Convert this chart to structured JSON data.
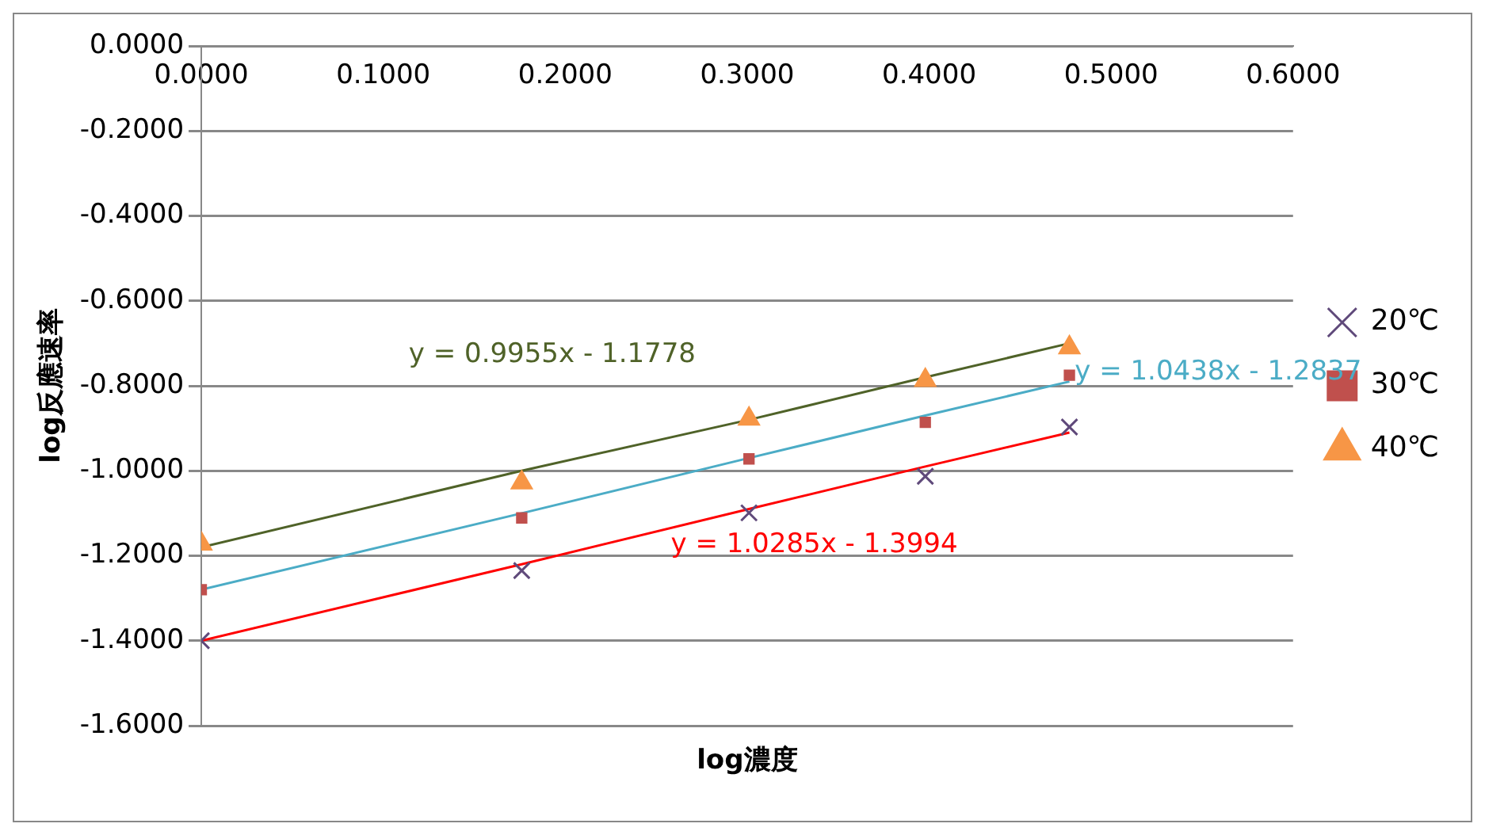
{
  "chart_data": {
    "type": "scatter",
    "xlabel": "log濃度",
    "ylabel": "log反應速率",
    "xlim": [
      0,
      0.6
    ],
    "ylim": [
      -1.6,
      0
    ],
    "xticks": [
      {
        "value": 0,
        "label": "0.0000"
      },
      {
        "value": 0.1,
        "label": "0.1000"
      },
      {
        "value": 0.2,
        "label": "0.2000"
      },
      {
        "value": 0.3,
        "label": "0.3000"
      },
      {
        "value": 0.4,
        "label": "0.4000"
      },
      {
        "value": 0.5,
        "label": "0.5000"
      },
      {
        "value": 0.6,
        "label": "0.6000"
      }
    ],
    "yticks": [
      {
        "value": 0,
        "label": "0.0000"
      },
      {
        "value": -0.2,
        "label": "-0.2000"
      },
      {
        "value": -0.4,
        "label": "-0.4000"
      },
      {
        "value": -0.6,
        "label": "-0.6000"
      },
      {
        "value": -0.8,
        "label": "-0.8000"
      },
      {
        "value": -1,
        "label": "-1.0000"
      },
      {
        "value": -1.2,
        "label": "-1.2000"
      },
      {
        "value": -1.4,
        "label": "-1.4000"
      },
      {
        "value": -1.6,
        "label": "-1.6000"
      }
    ],
    "grid": "y",
    "legend": "right",
    "x": [
      0,
      0.1761,
      0.301,
      0.3979,
      0.4771
    ],
    "series": [
      {
        "name": "20℃",
        "color": "#604a7b",
        "marker": "cross",
        "values": [
          -1.4,
          -1.235,
          -1.099,
          -1.013,
          -0.897
        ]
      },
      {
        "name": "30℃",
        "color": "#c0504d",
        "marker": "square",
        "values": [
          -1.28,
          -1.111,
          -0.972,
          -0.886,
          -0.775
        ]
      },
      {
        "name": "40℃",
        "color": "#f79646",
        "marker": "triangle",
        "values": [
          -1.172,
          -1.028,
          -0.878,
          -0.787,
          -0.71
        ]
      },
      {
        "type": "line",
        "color": "#4f6228",
        "marker": "none",
        "values": [
          -1.18,
          -1.0,
          -0.88,
          -0.78,
          -0.7
        ]
      },
      {
        "type": "line",
        "color": "#4bacc6",
        "marker": "none",
        "values": [
          -1.28,
          -1.1,
          -0.97,
          -0.87,
          -0.79
        ]
      },
      {
        "type": "line",
        "color": "#ff0000",
        "marker": "none",
        "values": [
          -1.4,
          -1.22,
          -1.09,
          -0.99,
          -0.91
        ]
      }
    ],
    "annotations": [
      "y = 0.9955x - 1.1778",
      "y = 1.0438x - 1.2837",
      "y = 1.0285x - 1.3994"
    ]
  }
}
